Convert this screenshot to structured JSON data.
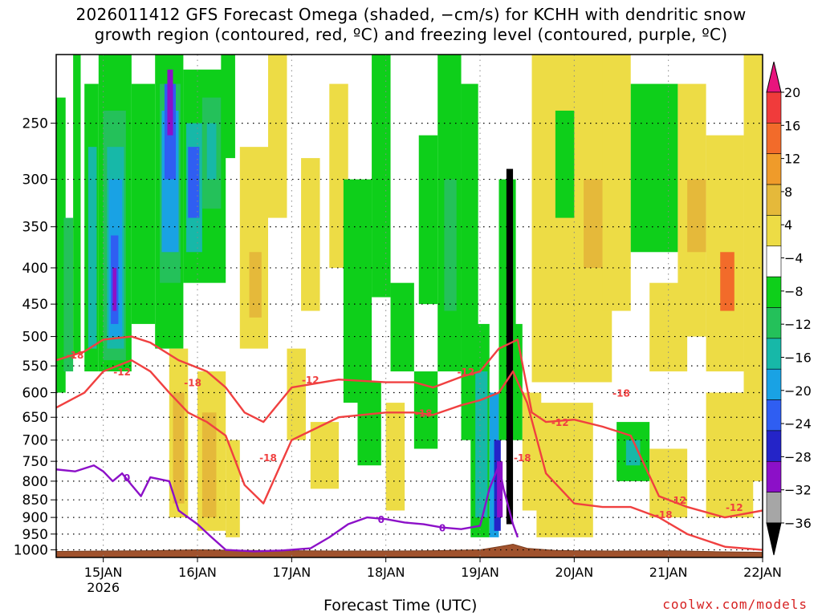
{
  "title_line1": "2026011412 GFS Forecast Omega (shaded, −cm/s) for KCHH with dendritic snow",
  "title_line2": "growth region (contoured, red, ºC) and freezing level (contoured, purple, ºC)",
  "watermark": "coolwx.com/models",
  "chart_data": {
    "type": "heatmap",
    "title": "2026011412 GFS Forecast Omega (shaded, −cm/s) for KCHH with dendritic snow growth region (contoured, red, ºC) and freezing level (contoured, purple, ºC)",
    "xlabel": "Forecast Time (UTC)",
    "ylabel": "",
    "y_axis": {
      "scale": "log-pressure",
      "ticks": [
        250,
        300,
        350,
        400,
        450,
        500,
        550,
        600,
        650,
        700,
        750,
        800,
        850,
        900,
        950,
        1000
      ],
      "range": [
        200,
        1025
      ]
    },
    "x_axis": {
      "range_days": [
        14.5,
        22.0
      ],
      "ticks": [
        {
          "value": 15,
          "label": "15JAN",
          "sublabel": "2026"
        },
        {
          "value": 16,
          "label": "16JAN",
          "sublabel": ""
        },
        {
          "value": 17,
          "label": "17JAN",
          "sublabel": ""
        },
        {
          "value": 18,
          "label": "18JAN",
          "sublabel": ""
        },
        {
          "value": 19,
          "label": "19JAN",
          "sublabel": ""
        },
        {
          "value": 20,
          "label": "20JAN",
          "sublabel": ""
        },
        {
          "value": 21,
          "label": "21JAN",
          "sublabel": ""
        },
        {
          "value": 22,
          "label": "22JAN",
          "sublabel": ""
        }
      ]
    },
    "grid": true,
    "colorbar": {
      "labels": [
        "20",
        "16",
        "12",
        "8",
        "4",
        "−4",
        "−8",
        "−12",
        "−16",
        "−20",
        "−24",
        "−28",
        "−32",
        "−36"
      ],
      "colors": [
        "#e8147d",
        "#f03b3b",
        "#f26b2a",
        "#ef9b2a",
        "#e5b93a",
        "#eddc45",
        "#ffffff",
        "#0ecf1a",
        "#24c15a",
        "#17b8a8",
        "#19a2e4",
        "#2f5ef2",
        "#2424c8",
        "#8c10c8",
        "#a6a6a6",
        "#000000"
      ]
    },
    "contour_labels": {
      "dgz_red": [
        "-18",
        "-12",
        "-18",
        "-18",
        "-12",
        "-18",
        "-12",
        "-18",
        "-12",
        "-18",
        "-12",
        "-18",
        "-12"
      ],
      "freezing_purple": [
        "0",
        "0",
        "0"
      ]
    },
    "bands": [
      {
        "t0": 14.5,
        "t1": 14.6,
        "ptop": 230,
        "pbot": 600,
        "color": "#0ecf1a"
      },
      {
        "t0": 14.58,
        "t1": 14.68,
        "ptop": 340,
        "pbot": 560,
        "color": "#24c15a"
      },
      {
        "t0": 14.68,
        "t1": 14.76,
        "ptop": 200,
        "pbot": 530,
        "color": "#0ecf1a"
      },
      {
        "t0": 14.8,
        "t1": 14.95,
        "ptop": 220,
        "pbot": 560,
        "color": "#0ecf1a"
      },
      {
        "t0": 14.84,
        "t1": 14.93,
        "ptop": 270,
        "pbot": 520,
        "color": "#17b8a8"
      },
      {
        "t0": 14.95,
        "t1": 15.3,
        "ptop": 200,
        "pbot": 560,
        "color": "#0ecf1a"
      },
      {
        "t0": 15.0,
        "t1": 15.24,
        "ptop": 240,
        "pbot": 540,
        "color": "#24c15a"
      },
      {
        "t0": 15.04,
        "t1": 15.22,
        "ptop": 270,
        "pbot": 520,
        "color": "#17b8a8"
      },
      {
        "t0": 15.06,
        "t1": 15.2,
        "ptop": 300,
        "pbot": 500,
        "color": "#19a2e4"
      },
      {
        "t0": 15.08,
        "t1": 15.16,
        "ptop": 360,
        "pbot": 480,
        "color": "#2f5ef2"
      },
      {
        "t0": 15.1,
        "t1": 15.14,
        "ptop": 400,
        "pbot": 460,
        "color": "#8c10c8"
      },
      {
        "t0": 15.3,
        "t1": 15.55,
        "ptop": 220,
        "pbot": 480,
        "color": "#0ecf1a"
      },
      {
        "t0": 15.55,
        "t1": 15.85,
        "ptop": 200,
        "pbot": 520,
        "color": "#0ecf1a"
      },
      {
        "t0": 15.6,
        "t1": 15.82,
        "ptop": 220,
        "pbot": 420,
        "color": "#24c15a"
      },
      {
        "t0": 15.62,
        "t1": 15.8,
        "ptop": 240,
        "pbot": 380,
        "color": "#19a2e4"
      },
      {
        "t0": 15.65,
        "t1": 15.77,
        "ptop": 220,
        "pbot": 300,
        "color": "#2f5ef2"
      },
      {
        "t0": 15.68,
        "t1": 15.74,
        "ptop": 210,
        "pbot": 260,
        "color": "#8c10c8"
      },
      {
        "t0": 15.85,
        "t1": 16.3,
        "ptop": 210,
        "pbot": 420,
        "color": "#0ecf1a"
      },
      {
        "t0": 15.88,
        "t1": 16.05,
        "ptop": 250,
        "pbot": 380,
        "color": "#17b8a8"
      },
      {
        "t0": 15.9,
        "t1": 16.02,
        "ptop": 270,
        "pbot": 340,
        "color": "#2f5ef2"
      },
      {
        "t0": 16.05,
        "t1": 16.25,
        "ptop": 230,
        "pbot": 330,
        "color": "#24c15a"
      },
      {
        "t0": 16.1,
        "t1": 16.2,
        "ptop": 250,
        "pbot": 300,
        "color": "#17b8a8"
      },
      {
        "t0": 16.25,
        "t1": 16.4,
        "ptop": 200,
        "pbot": 280,
        "color": "#0ecf1a"
      },
      {
        "t0": 15.7,
        "t1": 15.9,
        "ptop": 520,
        "pbot": 900,
        "color": "#eddc45"
      },
      {
        "t0": 15.74,
        "t1": 15.86,
        "ptop": 600,
        "pbot": 860,
        "color": "#e5b93a"
      },
      {
        "t0": 16.0,
        "t1": 16.3,
        "ptop": 560,
        "pbot": 940,
        "color": "#eddc45"
      },
      {
        "t0": 16.05,
        "t1": 16.2,
        "ptop": 640,
        "pbot": 900,
        "color": "#e5b93a"
      },
      {
        "t0": 16.3,
        "t1": 16.45,
        "ptop": 700,
        "pbot": 960,
        "color": "#eddc45"
      },
      {
        "t0": 16.45,
        "t1": 16.75,
        "ptop": 270,
        "pbot": 520,
        "color": "#eddc45"
      },
      {
        "t0": 16.55,
        "t1": 16.68,
        "ptop": 380,
        "pbot": 470,
        "color": "#e5b93a"
      },
      {
        "t0": 16.75,
        "t1": 16.95,
        "ptop": 200,
        "pbot": 340,
        "color": "#eddc45"
      },
      {
        "t0": 16.95,
        "t1": 17.15,
        "ptop": 520,
        "pbot": 700,
        "color": "#eddc45"
      },
      {
        "t0": 17.1,
        "t1": 17.3,
        "ptop": 280,
        "pbot": 460,
        "color": "#eddc45"
      },
      {
        "t0": 17.2,
        "t1": 17.5,
        "ptop": 660,
        "pbot": 820,
        "color": "#eddc45"
      },
      {
        "t0": 17.4,
        "t1": 17.6,
        "ptop": 220,
        "pbot": 400,
        "color": "#eddc45"
      },
      {
        "t0": 17.55,
        "t1": 17.85,
        "ptop": 300,
        "pbot": 620,
        "color": "#0ecf1a"
      },
      {
        "t0": 17.7,
        "t1": 17.95,
        "ptop": 580,
        "pbot": 760,
        "color": "#0ecf1a"
      },
      {
        "t0": 17.85,
        "t1": 18.05,
        "ptop": 200,
        "pbot": 440,
        "color": "#0ecf1a"
      },
      {
        "t0": 18.0,
        "t1": 18.2,
        "ptop": 620,
        "pbot": 880,
        "color": "#eddc45"
      },
      {
        "t0": 18.05,
        "t1": 18.3,
        "ptop": 420,
        "pbot": 560,
        "color": "#0ecf1a"
      },
      {
        "t0": 18.3,
        "t1": 18.55,
        "ptop": 560,
        "pbot": 720,
        "color": "#0ecf1a"
      },
      {
        "t0": 18.35,
        "t1": 18.55,
        "ptop": 260,
        "pbot": 450,
        "color": "#0ecf1a"
      },
      {
        "t0": 18.55,
        "t1": 18.8,
        "ptop": 200,
        "pbot": 560,
        "color": "#0ecf1a"
      },
      {
        "t0": 18.62,
        "t1": 18.75,
        "ptop": 300,
        "pbot": 460,
        "color": "#24c15a"
      },
      {
        "t0": 18.8,
        "t1": 18.98,
        "ptop": 220,
        "pbot": 700,
        "color": "#0ecf1a"
      },
      {
        "t0": 18.9,
        "t1": 19.1,
        "ptop": 480,
        "pbot": 960,
        "color": "#0ecf1a"
      },
      {
        "t0": 18.95,
        "t1": 19.08,
        "ptop": 560,
        "pbot": 900,
        "color": "#17b8a8"
      },
      {
        "t0": 19.1,
        "t1": 19.2,
        "ptop": 600,
        "pbot": 960,
        "color": "#19a2e4"
      },
      {
        "t0": 19.15,
        "t1": 19.22,
        "ptop": 700,
        "pbot": 940,
        "color": "#2424c8"
      },
      {
        "t0": 19.18,
        "t1": 19.24,
        "ptop": 750,
        "pbot": 900,
        "color": "#8c10c8"
      },
      {
        "t0": 19.2,
        "t1": 19.38,
        "ptop": 300,
        "pbot": 700,
        "color": "#0ecf1a"
      },
      {
        "t0": 19.28,
        "t1": 19.35,
        "ptop": 290,
        "pbot": 920,
        "color": "#000000"
      },
      {
        "t0": 19.36,
        "t1": 19.45,
        "ptop": 480,
        "pbot": 700,
        "color": "#0ecf1a"
      },
      {
        "t0": 19.45,
        "t1": 19.65,
        "ptop": 600,
        "pbot": 880,
        "color": "#eddc45"
      },
      {
        "t0": 19.6,
        "t1": 20.2,
        "ptop": 620,
        "pbot": 960,
        "color": "#eddc45"
      },
      {
        "t0": 19.55,
        "t1": 20.4,
        "ptop": 200,
        "pbot": 580,
        "color": "#eddc45"
      },
      {
        "t0": 19.8,
        "t1": 20.0,
        "ptop": 240,
        "pbot": 340,
        "color": "#0ecf1a"
      },
      {
        "t0": 20.1,
        "t1": 20.3,
        "ptop": 300,
        "pbot": 400,
        "color": "#e5b93a"
      },
      {
        "t0": 20.3,
        "t1": 20.6,
        "ptop": 200,
        "pbot": 460,
        "color": "#eddc45"
      },
      {
        "t0": 20.45,
        "t1": 20.8,
        "ptop": 660,
        "pbot": 800,
        "color": "#0ecf1a"
      },
      {
        "t0": 20.55,
        "t1": 20.7,
        "ptop": 700,
        "pbot": 760,
        "color": "#17b8a8"
      },
      {
        "t0": 20.6,
        "t1": 21.1,
        "ptop": 220,
        "pbot": 380,
        "color": "#0ecf1a"
      },
      {
        "t0": 20.8,
        "t1": 21.2,
        "ptop": 420,
        "pbot": 560,
        "color": "#eddc45"
      },
      {
        "t0": 20.8,
        "t1": 21.2,
        "ptop": 720,
        "pbot": 900,
        "color": "#eddc45"
      },
      {
        "t0": 21.1,
        "t1": 21.4,
        "ptop": 220,
        "pbot": 500,
        "color": "#eddc45"
      },
      {
        "t0": 21.2,
        "t1": 21.4,
        "ptop": 300,
        "pbot": 380,
        "color": "#e5b93a"
      },
      {
        "t0": 21.4,
        "t1": 21.8,
        "ptop": 260,
        "pbot": 560,
        "color": "#eddc45"
      },
      {
        "t0": 21.55,
        "t1": 21.7,
        "ptop": 380,
        "pbot": 460,
        "color": "#f26b2a"
      },
      {
        "t0": 21.8,
        "t1": 22.0,
        "ptop": 200,
        "pbot": 800,
        "color": "#eddc45"
      },
      {
        "t0": 21.4,
        "t1": 21.9,
        "ptop": 600,
        "pbot": 900,
        "color": "#eddc45"
      }
    ],
    "dgz_lines": [
      {
        "name": "-18 upper",
        "t": [
          14.5,
          14.8,
          15.0,
          15.3,
          15.5,
          15.8,
          16.1,
          16.3,
          16.5,
          16.7,
          17.0,
          17.5,
          18.0,
          18.3,
          18.5,
          18.8,
          19.0,
          19.2,
          19.4,
          19.55,
          19.7,
          20.0,
          20.3,
          20.6,
          20.9,
          21.2,
          21.6,
          22.0
        ],
        "p": [
          540,
          525,
          505,
          500,
          510,
          540,
          560,
          590,
          640,
          660,
          590,
          575,
          580,
          580,
          590,
          570,
          560,
          520,
          505,
          640,
          660,
          655,
          670,
          690,
          840,
          870,
          900,
          880
        ]
      },
      {
        "name": "-12 upper",
        "t": [
          14.5,
          14.8,
          15.0,
          15.3,
          15.5,
          15.7,
          15.9,
          16.1,
          16.3,
          16.5,
          16.7,
          17.0,
          17.5,
          18.0,
          18.3,
          18.5,
          18.8,
          19.0,
          19.2,
          19.35,
          19.5,
          19.7,
          20.0,
          20.3,
          20.6,
          20.9,
          21.2,
          21.6,
          22.0
        ],
        "p": [
          630,
          600,
          560,
          540,
          560,
          600,
          640,
          660,
          690,
          810,
          860,
          700,
          650,
          640,
          640,
          645,
          625,
          615,
          600,
          560,
          620,
          780,
          860,
          870,
          870,
          900,
          950,
          990,
          1000
        ]
      }
    ],
    "freezing_line": {
      "t": [
        14.5,
        14.7,
        14.9,
        15.0,
        15.1,
        15.2,
        15.3,
        15.4,
        15.5,
        15.7,
        15.8,
        16.0,
        16.15,
        16.3,
        16.6,
        16.9,
        17.2,
        17.4,
        17.6,
        17.8,
        18.0,
        18.2,
        18.4,
        18.6,
        18.8,
        19.0,
        19.1,
        19.2,
        19.25,
        19.35,
        19.4
      ],
      "p": [
        770,
        775,
        760,
        775,
        800,
        780,
        810,
        840,
        790,
        800,
        880,
        920,
        960,
        1000,
        1005,
        1002,
        995,
        960,
        920,
        900,
        905,
        915,
        920,
        930,
        935,
        925,
        820,
        760,
        820,
        920,
        960
      ]
    },
    "terrain_top_pressure": {
      "t": [
        14.5,
        15.0,
        15.5,
        16.0,
        16.5,
        17.0,
        17.5,
        18.0,
        18.5,
        19.0,
        19.2,
        19.35,
        19.5,
        19.8,
        20.0,
        20.5,
        21.0,
        21.5,
        22.0
      ],
      "p": [
        1005,
        1004,
        1003,
        1000,
        1002,
        1003,
        1004,
        1004,
        1003,
        1000,
        990,
        982,
        995,
        1002,
        1003,
        1004,
        1003,
        1006,
        1008
      ]
    }
  }
}
